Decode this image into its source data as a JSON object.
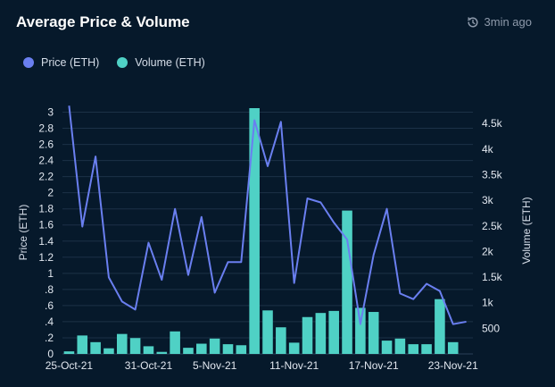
{
  "header": {
    "title": "Average Price & Volume",
    "updated": "3min ago",
    "updated_icon": "refresh-clock-icon"
  },
  "legend": [
    {
      "label": "Price (ETH)",
      "color": "#6a7ff0"
    },
    {
      "label": "Volume (ETH)",
      "color": "#4fd1c5"
    }
  ],
  "chart_data": {
    "type": "bar",
    "x": [
      "25-Oct-21",
      "26-Oct-21",
      "27-Oct-21",
      "28-Oct-21",
      "29-Oct-21",
      "30-Oct-21",
      "31-Oct-21",
      "1-Nov-21",
      "2-Nov-21",
      "3-Nov-21",
      "4-Nov-21",
      "5-Nov-21",
      "6-Nov-21",
      "7-Nov-21",
      "8-Nov-21",
      "9-Nov-21",
      "10-Nov-21",
      "11-Nov-21",
      "12-Nov-21",
      "13-Nov-21",
      "14-Nov-21",
      "15-Nov-21",
      "16-Nov-21",
      "17-Nov-21",
      "18-Nov-21",
      "19-Nov-21",
      "20-Nov-21",
      "21-Nov-21",
      "22-Nov-21",
      "23-Nov-21",
      "24-Nov-21"
    ],
    "x_tick_labels": [
      "25-Oct-21",
      "31-Oct-21",
      "5-Nov-21",
      "11-Nov-21",
      "17-Nov-21",
      "23-Nov-21"
    ],
    "series": [
      {
        "name": "Volume (ETH)",
        "type": "bar",
        "axis": "right",
        "color": "#4fd1c5",
        "values": [
          50,
          360,
          230,
          110,
          390,
          310,
          150,
          40,
          440,
          120,
          200,
          300,
          190,
          170,
          5000,
          850,
          520,
          220,
          720,
          800,
          840,
          2800,
          900,
          820,
          260,
          300,
          190,
          190,
          1070,
          230,
          0
        ]
      },
      {
        "name": "Price (ETH)",
        "type": "line",
        "axis": "left",
        "color": "#6a7ff0",
        "values": [
          3.08,
          1.58,
          2.45,
          0.95,
          0.65,
          0.55,
          1.38,
          0.92,
          1.8,
          0.98,
          1.7,
          0.76,
          1.14,
          1.14,
          2.9,
          2.33,
          2.88,
          0.88,
          1.93,
          1.88,
          1.63,
          1.42,
          0.37,
          1.23,
          1.8,
          0.75,
          0.68,
          0.87,
          0.78,
          0.37,
          0.4
        ]
      }
    ],
    "y_left": {
      "label": "Price (ETH)",
      "ticks": [
        "0",
        ".2",
        ".4",
        ".6",
        ".8",
        "1",
        "1.2",
        "1.4",
        "1.6",
        "1.8",
        "2",
        "2.2",
        "2.4",
        "2.6",
        "2.8",
        "3"
      ],
      "range": [
        0,
        3.05
      ]
    },
    "y_right": {
      "label": "Volume (ETH)",
      "ticks": [
        "500",
        "1k",
        "1.5k",
        "2k",
        "2.5k",
        "3k",
        "3.5k",
        "4k",
        "4.5k"
      ],
      "tick_values": [
        500,
        1000,
        1500,
        2000,
        2500,
        3000,
        3500,
        4000,
        4500
      ],
      "range": [
        0,
        4800
      ]
    },
    "grid": true,
    "legend_position": "top-left"
  }
}
